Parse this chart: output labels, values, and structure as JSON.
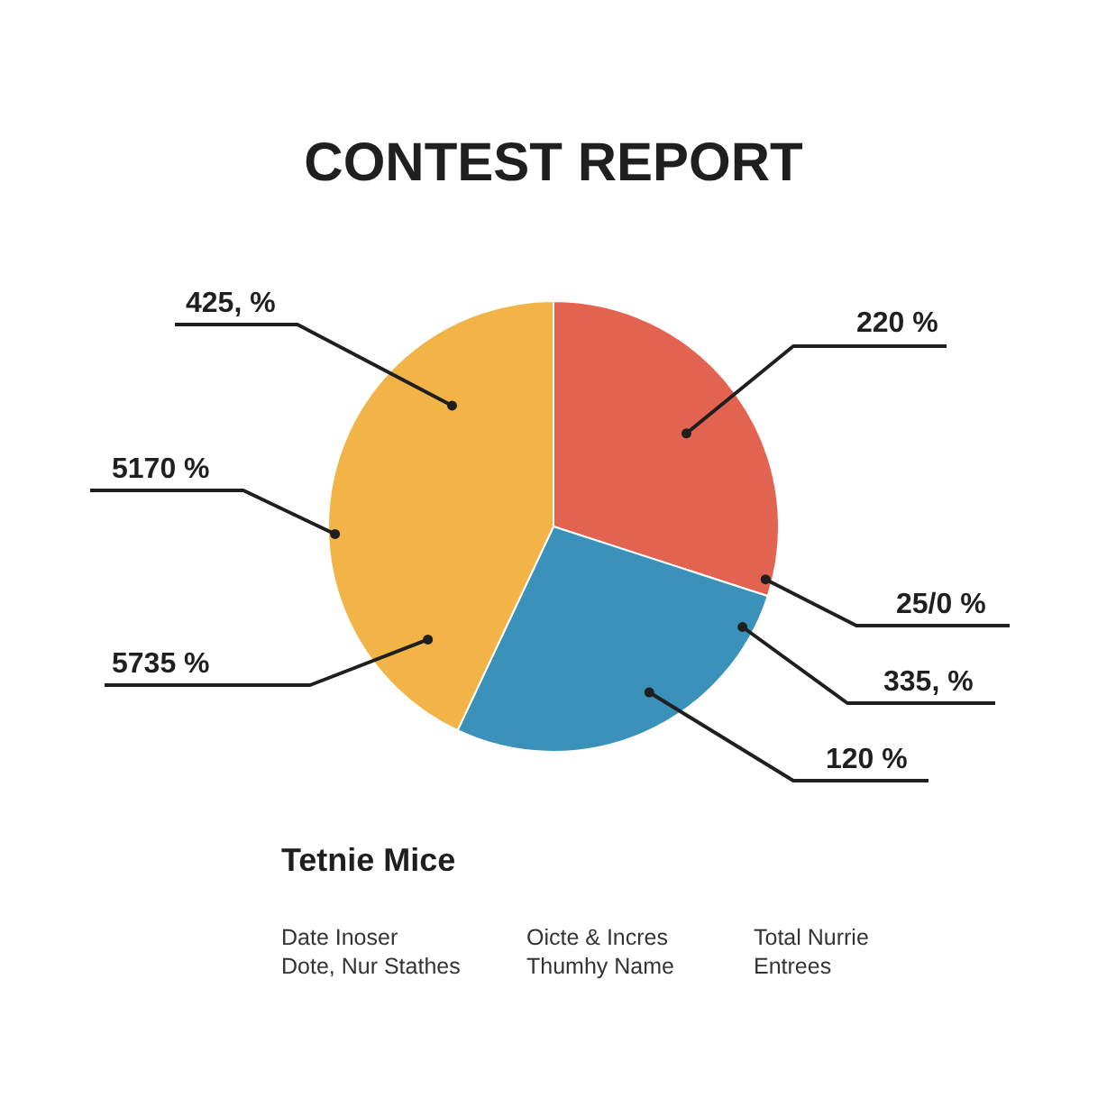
{
  "chart_data": {
    "type": "pie",
    "title": "CONTEST REPORT",
    "categories": [
      null,
      null,
      null
    ],
    "values": [
      30,
      27,
      43
    ],
    "colors": [
      "#e2634f",
      "#3a92bb",
      "#f2b446"
    ],
    "legend_title": "Tetnie Mice",
    "annotations": [
      "425, %",
      "5170 %",
      "5735 %",
      "220 %",
      "25/0 %",
      "335, %",
      "120 %",
      "Date Inoser",
      "Oicte & Incres",
      "Total Nurrie",
      "Dote, Nur Stathes",
      "Thumhy Name",
      "Entrees"
    ]
  }
}
